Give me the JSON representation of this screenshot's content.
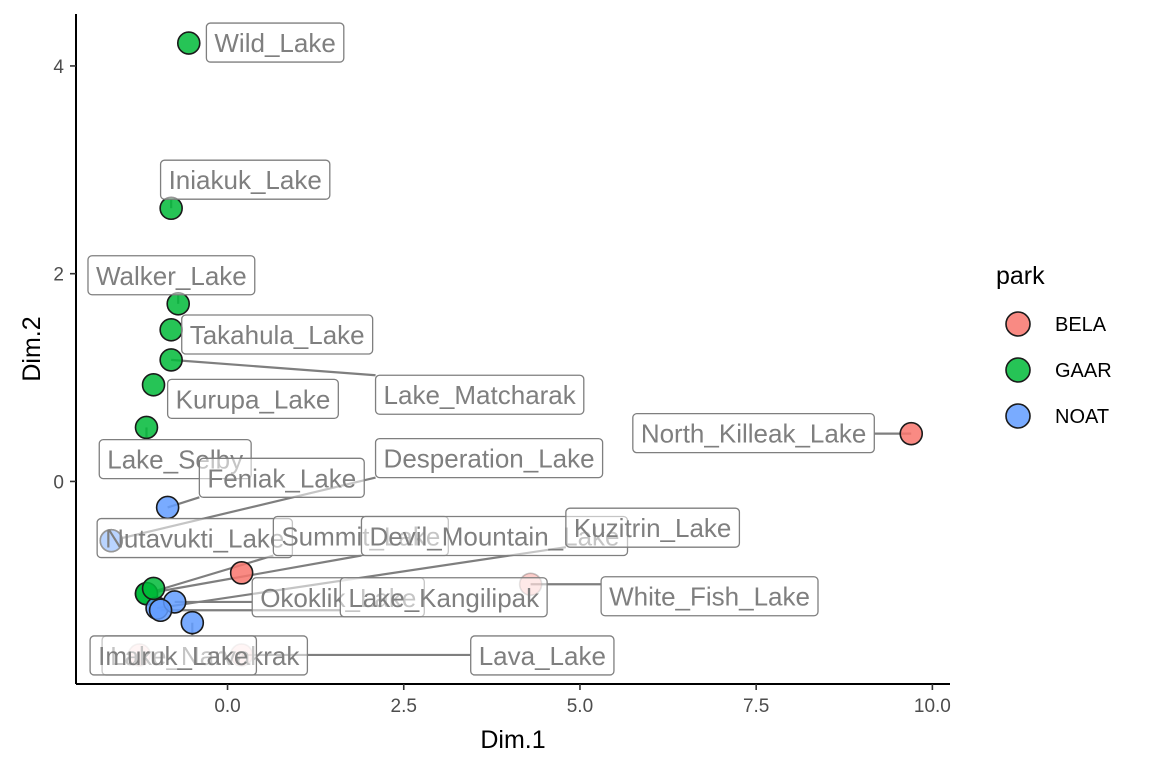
{
  "chart_data": {
    "type": "scatter",
    "xlabel": "Dim.1",
    "ylabel": "Dim.2",
    "xlim": [
      -2.15,
      10.25
    ],
    "ylim": [
      -1.95,
      4.5
    ],
    "xticks": [
      0.0,
      2.5,
      5.0,
      7.5,
      10.0
    ],
    "xtick_labels": [
      "0.0",
      "2.5",
      "5.0",
      "7.5",
      "10.0"
    ],
    "yticks": [
      0,
      2,
      4
    ],
    "ytick_labels": [
      "0",
      "2",
      "4"
    ],
    "grid": false,
    "legend": {
      "title": "park",
      "placement": "right",
      "entries": [
        {
          "name": "BELA",
          "color": "#F8766D"
        },
        {
          "name": "GAAR",
          "color": "#00BA38"
        },
        {
          "name": "NOAT",
          "color": "#619CFF"
        }
      ]
    },
    "points": [
      {
        "label": "Wild_Lake",
        "park": "GAAR",
        "x": -0.55,
        "y": 4.22,
        "lx": -0.3,
        "ly": 4.22
      },
      {
        "label": "Iniakuk_Lake",
        "park": "GAAR",
        "x": -0.8,
        "y": 2.63,
        "lx": -0.95,
        "ly": 2.9
      },
      {
        "label": "Walker_Lake",
        "park": "GAAR",
        "x": -0.7,
        "y": 1.71,
        "lx": -1.98,
        "ly": 1.98
      },
      {
        "label": "Takahula_Lake",
        "park": "GAAR",
        "x": -0.8,
        "y": 1.46,
        "lx": -0.65,
        "ly": 1.41
      },
      {
        "label": "Lake_Matcharak",
        "park": "GAAR",
        "x": -0.8,
        "y": 1.17,
        "lx": 2.1,
        "ly": 0.83
      },
      {
        "label": "Kurupa_Lake",
        "park": "GAAR",
        "x": -1.05,
        "y": 0.93,
        "lx": -0.85,
        "ly": 0.79
      },
      {
        "label": "Lake_Selby",
        "park": "GAAR",
        "x": -1.15,
        "y": 0.52,
        "lx": -1.82,
        "ly": 0.21
      },
      {
        "label": "North_Killeak_Lake",
        "park": "BELA",
        "x": 9.7,
        "y": 0.46,
        "lx": 5.75,
        "ly": 0.46
      },
      {
        "label": "Desperation_Lake",
        "park": "NOAT",
        "x": -1.65,
        "y": -0.57,
        "lx": 2.1,
        "ly": 0.22
      },
      {
        "label": "Feniak_Lake",
        "park": "NOAT",
        "x": -0.85,
        "y": -0.25,
        "lx": -0.4,
        "ly": 0.03
      },
      {
        "label": "Nutavukti_Lake",
        "park": "NOAT",
        "x": -1.65,
        "y": -0.57,
        "lx": -1.85,
        "ly": -0.55
      },
      {
        "label": "Summit_Lake",
        "park": "GAAR",
        "x": -1.15,
        "y": -1.08,
        "lx": 0.65,
        "ly": -0.53
      },
      {
        "label": "Devil_Mountain_Lake",
        "park": "GAAR",
        "x": -1.15,
        "y": -1.08,
        "lx": 1.9,
        "ly": -0.53
      },
      {
        "label": "Kuzitrin_Lake",
        "park": "NOAT",
        "x": -1.0,
        "y": -1.22,
        "lx": 4.8,
        "ly": -0.45
      },
      {
        "label": "Okoklik_Lake",
        "park": "NOAT",
        "x": -0.75,
        "y": -1.16,
        "lx": 0.35,
        "ly": -1.12
      },
      {
        "label": "Lake_Kangilipak",
        "park": "NOAT",
        "x": -0.95,
        "y": -1.24,
        "lx": 1.6,
        "ly": -1.12
      },
      {
        "label": "White_Fish_Lake",
        "park": "BELA",
        "x": 4.3,
        "y": -0.99,
        "lx": 5.3,
        "ly": -1.11
      },
      {
        "label": "Lake_Narvakrak",
        "park": "NOAT",
        "x": -0.5,
        "y": -1.36,
        "lx": -1.78,
        "ly": -1.68
      },
      {
        "label": "Imuruk_Lake",
        "park": "BELA",
        "x": -1.25,
        "y": -1.67,
        "lx": -1.95,
        "ly": -1.68
      },
      {
        "label": "Lava_Lake",
        "park": "BELA",
        "x": 0.2,
        "y": -1.67,
        "lx": 3.45,
        "ly": -1.68
      },
      {
        "label": "",
        "park": "BELA",
        "x": 0.2,
        "y": -0.88,
        "lx": 0.2,
        "ly": -0.88
      },
      {
        "label": "",
        "park": "GAAR",
        "x": -1.05,
        "y": -1.03,
        "lx": -1.05,
        "ly": -1.03
      }
    ]
  }
}
